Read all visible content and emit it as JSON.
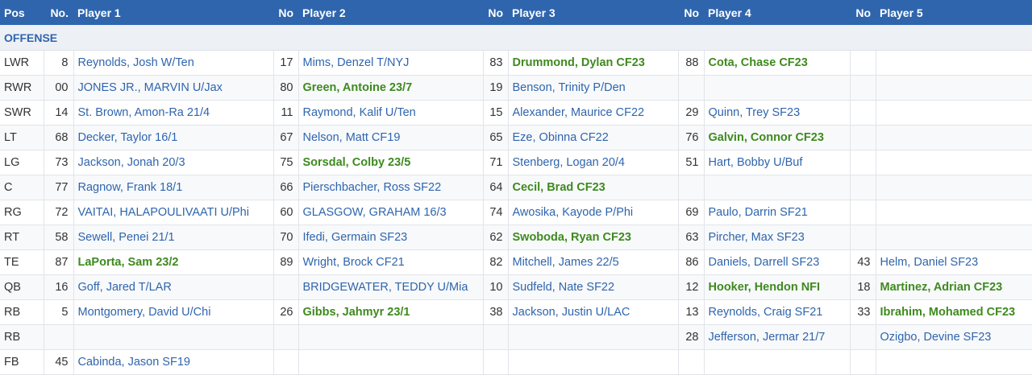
{
  "header": {
    "pos": "Pos",
    "no1": "No.",
    "player1": "Player 1",
    "no2": "No",
    "player2": "Player 2",
    "no3": "No",
    "player3": "Player 3",
    "no4": "No",
    "player4": "Player 4",
    "no5": "No",
    "player5": "Player 5"
  },
  "section_title": "OFFENSE",
  "colors": {
    "header_bg": "#2f65ad",
    "link": "#2f65ad",
    "highlight": "#3e8a1e"
  },
  "rows": [
    {
      "pos": "LWR",
      "players": [
        {
          "no": "8",
          "name": "Reynolds, Josh W/Ten",
          "new": false
        },
        {
          "no": "17",
          "name": "Mims, Denzel T/NYJ",
          "new": false
        },
        {
          "no": "83",
          "name": "Drummond, Dylan CF23",
          "new": true
        },
        {
          "no": "88",
          "name": "Cota, Chase CF23",
          "new": true
        },
        {
          "no": "",
          "name": "",
          "new": false
        }
      ]
    },
    {
      "pos": "RWR",
      "players": [
        {
          "no": "00",
          "name": "JONES JR., MARVIN U/Jax",
          "new": false
        },
        {
          "no": "80",
          "name": "Green, Antoine 23/7",
          "new": true
        },
        {
          "no": "19",
          "name": "Benson, Trinity P/Den",
          "new": false
        },
        {
          "no": "",
          "name": "",
          "new": false
        },
        {
          "no": "",
          "name": "",
          "new": false
        }
      ]
    },
    {
      "pos": "SWR",
      "players": [
        {
          "no": "14",
          "name": "St. Brown, Amon-Ra 21/4",
          "new": false
        },
        {
          "no": "11",
          "name": "Raymond, Kalif U/Ten",
          "new": false
        },
        {
          "no": "15",
          "name": "Alexander, Maurice CF22",
          "new": false
        },
        {
          "no": "29",
          "name": "Quinn, Trey SF23",
          "new": false
        },
        {
          "no": "",
          "name": "",
          "new": false
        }
      ]
    },
    {
      "pos": "LT",
      "players": [
        {
          "no": "68",
          "name": "Decker, Taylor 16/1",
          "new": false
        },
        {
          "no": "67",
          "name": "Nelson, Matt CF19",
          "new": false
        },
        {
          "no": "65",
          "name": "Eze, Obinna CF22",
          "new": false
        },
        {
          "no": "76",
          "name": "Galvin, Connor CF23",
          "new": true
        },
        {
          "no": "",
          "name": "",
          "new": false
        }
      ]
    },
    {
      "pos": "LG",
      "players": [
        {
          "no": "73",
          "name": "Jackson, Jonah 20/3",
          "new": false
        },
        {
          "no": "75",
          "name": "Sorsdal, Colby 23/5",
          "new": true
        },
        {
          "no": "71",
          "name": "Stenberg, Logan 20/4",
          "new": false
        },
        {
          "no": "51",
          "name": "Hart, Bobby U/Buf",
          "new": false
        },
        {
          "no": "",
          "name": "",
          "new": false
        }
      ]
    },
    {
      "pos": "C",
      "players": [
        {
          "no": "77",
          "name": "Ragnow, Frank 18/1",
          "new": false
        },
        {
          "no": "66",
          "name": "Pierschbacher, Ross SF22",
          "new": false
        },
        {
          "no": "64",
          "name": "Cecil, Brad CF23",
          "new": true
        },
        {
          "no": "",
          "name": "",
          "new": false
        },
        {
          "no": "",
          "name": "",
          "new": false
        }
      ]
    },
    {
      "pos": "RG",
      "players": [
        {
          "no": "72",
          "name": "VAITAI, HALAPOULIVAATI U/Phi",
          "new": false
        },
        {
          "no": "60",
          "name": "GLASGOW, GRAHAM 16/3",
          "new": false
        },
        {
          "no": "74",
          "name": "Awosika, Kayode P/Phi",
          "new": false
        },
        {
          "no": "69",
          "name": "Paulo, Darrin SF21",
          "new": false
        },
        {
          "no": "",
          "name": "",
          "new": false
        }
      ]
    },
    {
      "pos": "RT",
      "players": [
        {
          "no": "58",
          "name": "Sewell, Penei 21/1",
          "new": false
        },
        {
          "no": "70",
          "name": "Ifedi, Germain SF23",
          "new": false
        },
        {
          "no": "62",
          "name": "Swoboda, Ryan CF23",
          "new": true
        },
        {
          "no": "63",
          "name": "Pircher, Max SF23",
          "new": false
        },
        {
          "no": "",
          "name": "",
          "new": false
        }
      ]
    },
    {
      "pos": "TE",
      "players": [
        {
          "no": "87",
          "name": "LaPorta, Sam 23/2",
          "new": true
        },
        {
          "no": "89",
          "name": "Wright, Brock CF21",
          "new": false
        },
        {
          "no": "82",
          "name": "Mitchell, James 22/5",
          "new": false
        },
        {
          "no": "86",
          "name": "Daniels, Darrell SF23",
          "new": false
        },
        {
          "no": "43",
          "name": "Helm, Daniel SF23",
          "new": false
        }
      ]
    },
    {
      "pos": "QB",
      "players": [
        {
          "no": "16",
          "name": "Goff, Jared T/LAR",
          "new": false
        },
        {
          "no": "",
          "name": "BRIDGEWATER, TEDDY U/Mia",
          "new": false
        },
        {
          "no": "10",
          "name": "Sudfeld, Nate SF22",
          "new": false
        },
        {
          "no": "12",
          "name": "Hooker, Hendon NFI",
          "new": true
        },
        {
          "no": "18",
          "name": "Martinez, Adrian CF23",
          "new": true
        }
      ]
    },
    {
      "pos": "RB",
      "players": [
        {
          "no": "5",
          "name": "Montgomery, David U/Chi",
          "new": false
        },
        {
          "no": "26",
          "name": "Gibbs, Jahmyr 23/1",
          "new": true
        },
        {
          "no": "38",
          "name": "Jackson, Justin U/LAC",
          "new": false
        },
        {
          "no": "13",
          "name": "Reynolds, Craig SF21",
          "new": false
        },
        {
          "no": "33",
          "name": "Ibrahim, Mohamed CF23",
          "new": true
        }
      ]
    },
    {
      "pos": "RB",
      "players": [
        {
          "no": "",
          "name": "",
          "new": false
        },
        {
          "no": "",
          "name": "",
          "new": false
        },
        {
          "no": "",
          "name": "",
          "new": false
        },
        {
          "no": "28",
          "name": "Jefferson, Jermar 21/7",
          "new": false
        },
        {
          "no": "",
          "name": "Ozigbo, Devine SF23",
          "new": false
        }
      ]
    },
    {
      "pos": "FB",
      "players": [
        {
          "no": "45",
          "name": "Cabinda, Jason SF19",
          "new": false
        },
        {
          "no": "",
          "name": "",
          "new": false
        },
        {
          "no": "",
          "name": "",
          "new": false
        },
        {
          "no": "",
          "name": "",
          "new": false
        },
        {
          "no": "",
          "name": "",
          "new": false
        }
      ]
    }
  ]
}
